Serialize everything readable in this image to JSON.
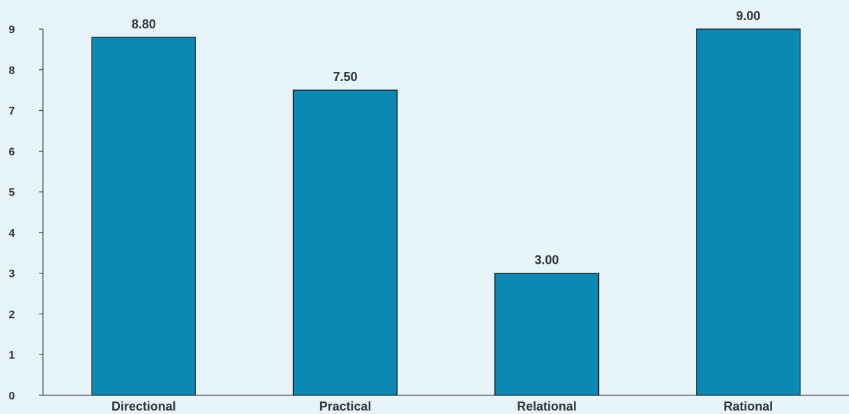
{
  "chart_data": {
    "type": "bar",
    "categories": [
      "Directional",
      "Practical",
      "Relational",
      "Rational"
    ],
    "values": [
      8.8,
      7.5,
      3.0,
      9.0
    ],
    "value_labels": [
      "8.80",
      "7.50",
      "3.00",
      "9.00"
    ],
    "title": "",
    "xlabel": "",
    "ylabel": "",
    "ylim": [
      0,
      9
    ],
    "yticks": [
      0,
      1,
      2,
      3,
      4,
      5,
      6,
      7,
      8,
      9
    ],
    "grid": false,
    "legend": "none",
    "colors": {
      "bar": "#0b89b4",
      "bar_outline": "#111111",
      "background": "#e6f4fa",
      "axis": "#222222",
      "text": "#333333"
    }
  }
}
